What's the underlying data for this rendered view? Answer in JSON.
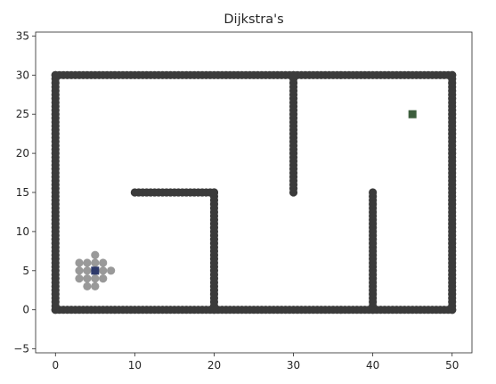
{
  "chart_data": {
    "type": "scatter",
    "title": "Dijkstra's",
    "xlabel": "",
    "ylabel": "",
    "xlim": [
      -2.5,
      52.5
    ],
    "ylim": [
      -5.5,
      35.5
    ],
    "xticks": [
      0,
      10,
      20,
      30,
      40,
      50
    ],
    "yticks": [
      -5,
      0,
      5,
      10,
      15,
      20,
      25,
      30,
      35
    ],
    "grid": false,
    "legend": "none",
    "colors": {
      "obstacle": "#3b3b3b",
      "visited": "#999999",
      "start": "#2e3a6b",
      "goal": "#3d5e3d",
      "axes": "#262626"
    },
    "obstacle_walls": [
      {
        "x1": 0,
        "y1": 0,
        "x2": 50,
        "y2": 0
      },
      {
        "x1": 0,
        "y1": 30,
        "x2": 50,
        "y2": 30
      },
      {
        "x1": 0,
        "y1": 0,
        "x2": 0,
        "y2": 30
      },
      {
        "x1": 50,
        "y1": 0,
        "x2": 50,
        "y2": 30
      },
      {
        "x1": 10,
        "y1": 15,
        "x2": 20,
        "y2": 15
      },
      {
        "x1": 20,
        "y1": 0,
        "x2": 20,
        "y2": 15
      },
      {
        "x1": 30,
        "y1": 15,
        "x2": 30,
        "y2": 30
      },
      {
        "x1": 40,
        "y1": 0,
        "x2": 40,
        "y2": 15
      }
    ],
    "visited_points": [
      [
        5,
        7
      ],
      [
        3,
        6
      ],
      [
        4,
        6
      ],
      [
        5,
        6
      ],
      [
        6,
        6
      ],
      [
        3,
        5
      ],
      [
        4,
        5
      ],
      [
        6,
        5
      ],
      [
        7,
        5
      ],
      [
        3,
        4
      ],
      [
        4,
        4
      ],
      [
        5,
        4
      ],
      [
        6,
        4
      ],
      [
        4,
        3
      ],
      [
        5,
        3
      ]
    ],
    "start": [
      5,
      5
    ],
    "goal": [
      45,
      25
    ]
  }
}
